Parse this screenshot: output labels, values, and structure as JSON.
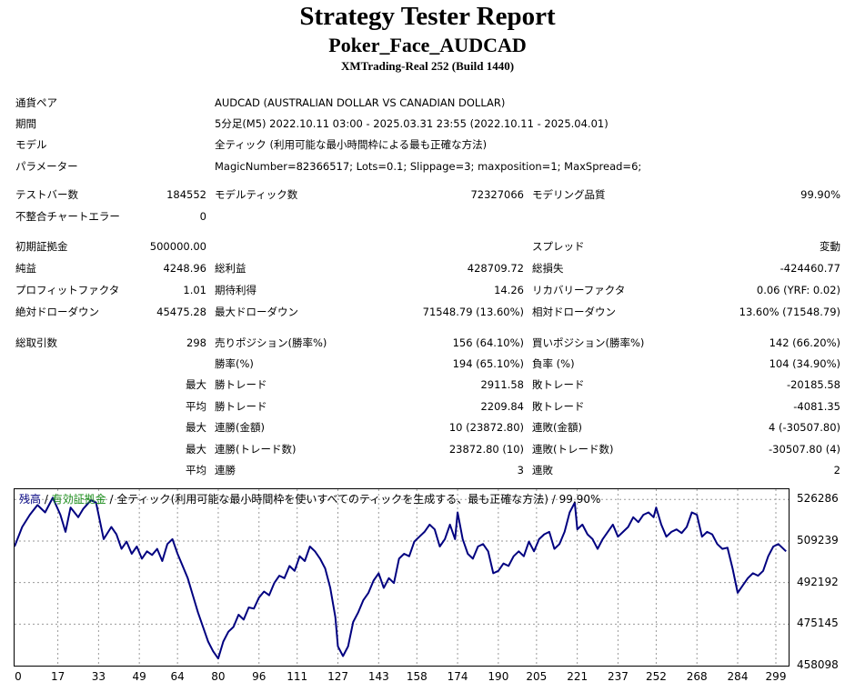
{
  "report": {
    "title": "Strategy Tester Report",
    "ea_name": "Poker_Face_AUDCAD",
    "server": "XMTrading-Real 252 (Build 1440)"
  },
  "info": [
    {
      "label": "通貨ペア",
      "value": "AUDCAD (AUSTRALIAN DOLLAR VS CANADIAN DOLLAR)"
    },
    {
      "label": "期間",
      "value": "5分足(M5) 2022.10.11 03:00 - 2025.03.31 23:55 (2022.10.11 - 2025.04.01)"
    },
    {
      "label": "モデル",
      "value": "全ティック (利用可能な最小時間枠による最も正確な方法)"
    },
    {
      "label": "パラメーター",
      "value": "MagicNumber=82366517; Lots=0.1; Slippage=3; maxposition=1; MaxSpread=6;"
    }
  ],
  "stats": {
    "test_bars_label": "テストバー数",
    "test_bars": "184552",
    "model_ticks_label": "モデルティック数",
    "model_ticks": "72327066",
    "model_quality_label": "モデリング品質",
    "model_quality": "99.90%",
    "mismatch_label": "不整合チャートエラー",
    "mismatch": "0",
    "initial_deposit_label": "初期証拠金",
    "initial_deposit": "500000.00",
    "spread_label": "スプレッド",
    "spread": "変動",
    "net_profit_label": "純益",
    "net_profit": "4248.96",
    "gross_profit_label": "総利益",
    "gross_profit": "428709.72",
    "gross_loss_label": "総損失",
    "gross_loss": "-424460.77",
    "profit_factor_label": "プロフィットファクタ",
    "profit_factor": "1.01",
    "expected_payoff_label": "期待利得",
    "expected_payoff": "14.26",
    "recovery_factor_label": "リカバリーファクタ",
    "recovery_factor": "0.06 (YRF: 0.02)",
    "abs_drawdown_label": "絶対ドローダウン",
    "abs_drawdown": "45475.28",
    "max_drawdown_label": "最大ドローダウン",
    "max_drawdown": "71548.79 (13.60%)",
    "rel_drawdown_label": "相対ドローダウン",
    "rel_drawdown": "13.60% (71548.79)",
    "total_trades_label": "総取引数",
    "total_trades": "298",
    "short_label": "売りポジション(勝率%)",
    "short": "156 (64.10%)",
    "long_label": "買いポジション(勝率%)",
    "long": "142 (66.20%)",
    "win_rate_label": "勝率(%)",
    "win_rate": "194 (65.10%)",
    "loss_rate_label": "負率 (%)",
    "loss_rate": "104 (34.90%)",
    "max_label": "最大",
    "avg_label": "平均",
    "win_trade_label": "勝トレード",
    "lose_trade_label": "敗トレード",
    "max_win_trade": "2911.58",
    "max_lose_trade": "-20185.58",
    "avg_win_trade": "2209.84",
    "avg_lose_trade": "-4081.35",
    "consec_win_money_label": "連勝(金額)",
    "consec_win_money": "10 (23872.80)",
    "consec_loss_money_label": "連敗(金額)",
    "consec_loss_money": "4 (-30507.80)",
    "consec_win_count_label": "連勝(トレード数)",
    "consec_win_count": "23872.80 (10)",
    "consec_loss_count_label": "連敗(トレード数)",
    "consec_loss_count": "-30507.80 (4)",
    "avg_consec_win_label": "連勝",
    "avg_consec_win": "3",
    "avg_consec_loss_label": "連敗",
    "avg_consec_loss": "2"
  },
  "chart_legend": {
    "balance": "残高",
    "sep1": " / ",
    "equity": "有効証拠金",
    "sep2": " / ",
    "rest": "全ティック(利用可能な最小時間枠を使いすべてのティックを生成する、最も正確な方法) / 99.90%"
  },
  "colors": {
    "balance_line": "#000080",
    "legend_balance": "#000080",
    "legend_equity": "#1a8c1a",
    "grid": "#9a9a9a"
  },
  "chart_data": {
    "type": "line",
    "xlabel": "",
    "ylabel": "",
    "xlim": [
      0,
      304
    ],
    "ylim": [
      458098,
      530500
    ],
    "x_ticks": [
      0,
      17,
      33,
      49,
      64,
      80,
      96,
      111,
      127,
      143,
      158,
      174,
      190,
      205,
      221,
      237,
      252,
      268,
      284,
      299
    ],
    "y_ticks": [
      526286,
      509239,
      492192,
      475145,
      458098
    ],
    "grid": true,
    "series": [
      {
        "x": [
          0,
          3,
          6,
          9,
          12,
          15,
          18,
          20,
          22,
          25,
          27,
          30,
          32,
          35,
          38,
          40,
          42,
          44,
          46,
          48,
          50,
          52,
          54,
          56,
          58,
          60,
          62,
          64,
          66,
          68,
          70,
          72,
          74,
          76,
          78,
          80,
          82,
          84,
          86,
          88,
          90,
          92,
          94,
          96,
          98,
          100,
          102,
          104,
          106,
          108,
          110,
          112,
          114,
          116,
          118,
          120,
          122,
          124,
          126,
          127,
          129,
          131,
          133,
          135,
          137,
          139,
          141,
          143,
          145,
          147,
          149,
          151,
          153,
          155,
          157,
          159,
          161,
          163,
          165,
          167,
          169,
          171,
          173,
          174,
          176,
          178,
          180,
          182,
          184,
          186,
          188,
          190,
          192,
          194,
          196,
          198,
          200,
          202,
          204,
          206,
          208,
          210,
          212,
          214,
          216,
          218,
          220,
          221,
          223,
          225,
          227,
          229,
          231,
          233,
          235,
          237,
          239,
          241,
          243,
          245,
          247,
          249,
          251,
          252,
          254,
          256,
          258,
          260,
          262,
          264,
          266,
          268,
          270,
          272,
          274,
          276,
          278,
          280,
          282,
          284,
          286,
          288,
          290,
          292,
          294,
          296,
          298,
          300,
          303
        ],
        "values": [
          507000,
          515000,
          520000,
          524000,
          521000,
          527000,
          520000,
          513000,
          523000,
          519000,
          522500,
          526000,
          525000,
          510000,
          515000,
          512000,
          506000,
          509000,
          504000,
          507000,
          502000,
          505000,
          503500,
          506000,
          501000,
          508000,
          510000,
          504000,
          499000,
          494000,
          487000,
          480000,
          474000,
          468000,
          464000,
          461000,
          468000,
          472000,
          474000,
          479000,
          477000,
          482000,
          481500,
          486000,
          488500,
          487000,
          492000,
          495000,
          494000,
          499000,
          497000,
          503000,
          501000,
          507000,
          505000,
          502000,
          498000,
          490000,
          478000,
          466000,
          462000,
          466000,
          476000,
          480000,
          485000,
          488000,
          493000,
          496000,
          490000,
          494000,
          492000,
          502000,
          504000,
          503000,
          509000,
          511000,
          513000,
          516000,
          514000,
          507000,
          510000,
          516000,
          510000,
          521000,
          510000,
          504000,
          502000,
          507000,
          508000,
          505000,
          496000,
          497000,
          500000,
          499000,
          503000,
          505000,
          503000,
          509000,
          505000,
          510000,
          512000,
          513000,
          506000,
          508000,
          513000,
          521000,
          525000,
          514000,
          516000,
          512000,
          510000,
          506000,
          510000,
          513000,
          516000,
          511000,
          513000,
          515000,
          519000,
          517000,
          520000,
          521000,
          519000,
          523000,
          516000,
          511000,
          513000,
          514000,
          512500,
          515000,
          521000,
          520000,
          511000,
          513000,
          512000,
          508000,
          506000,
          506500,
          498000,
          488000,
          491000,
          494000,
          496000,
          495000,
          497000,
          503000,
          507000,
          508000,
          505000
        ]
      }
    ]
  }
}
